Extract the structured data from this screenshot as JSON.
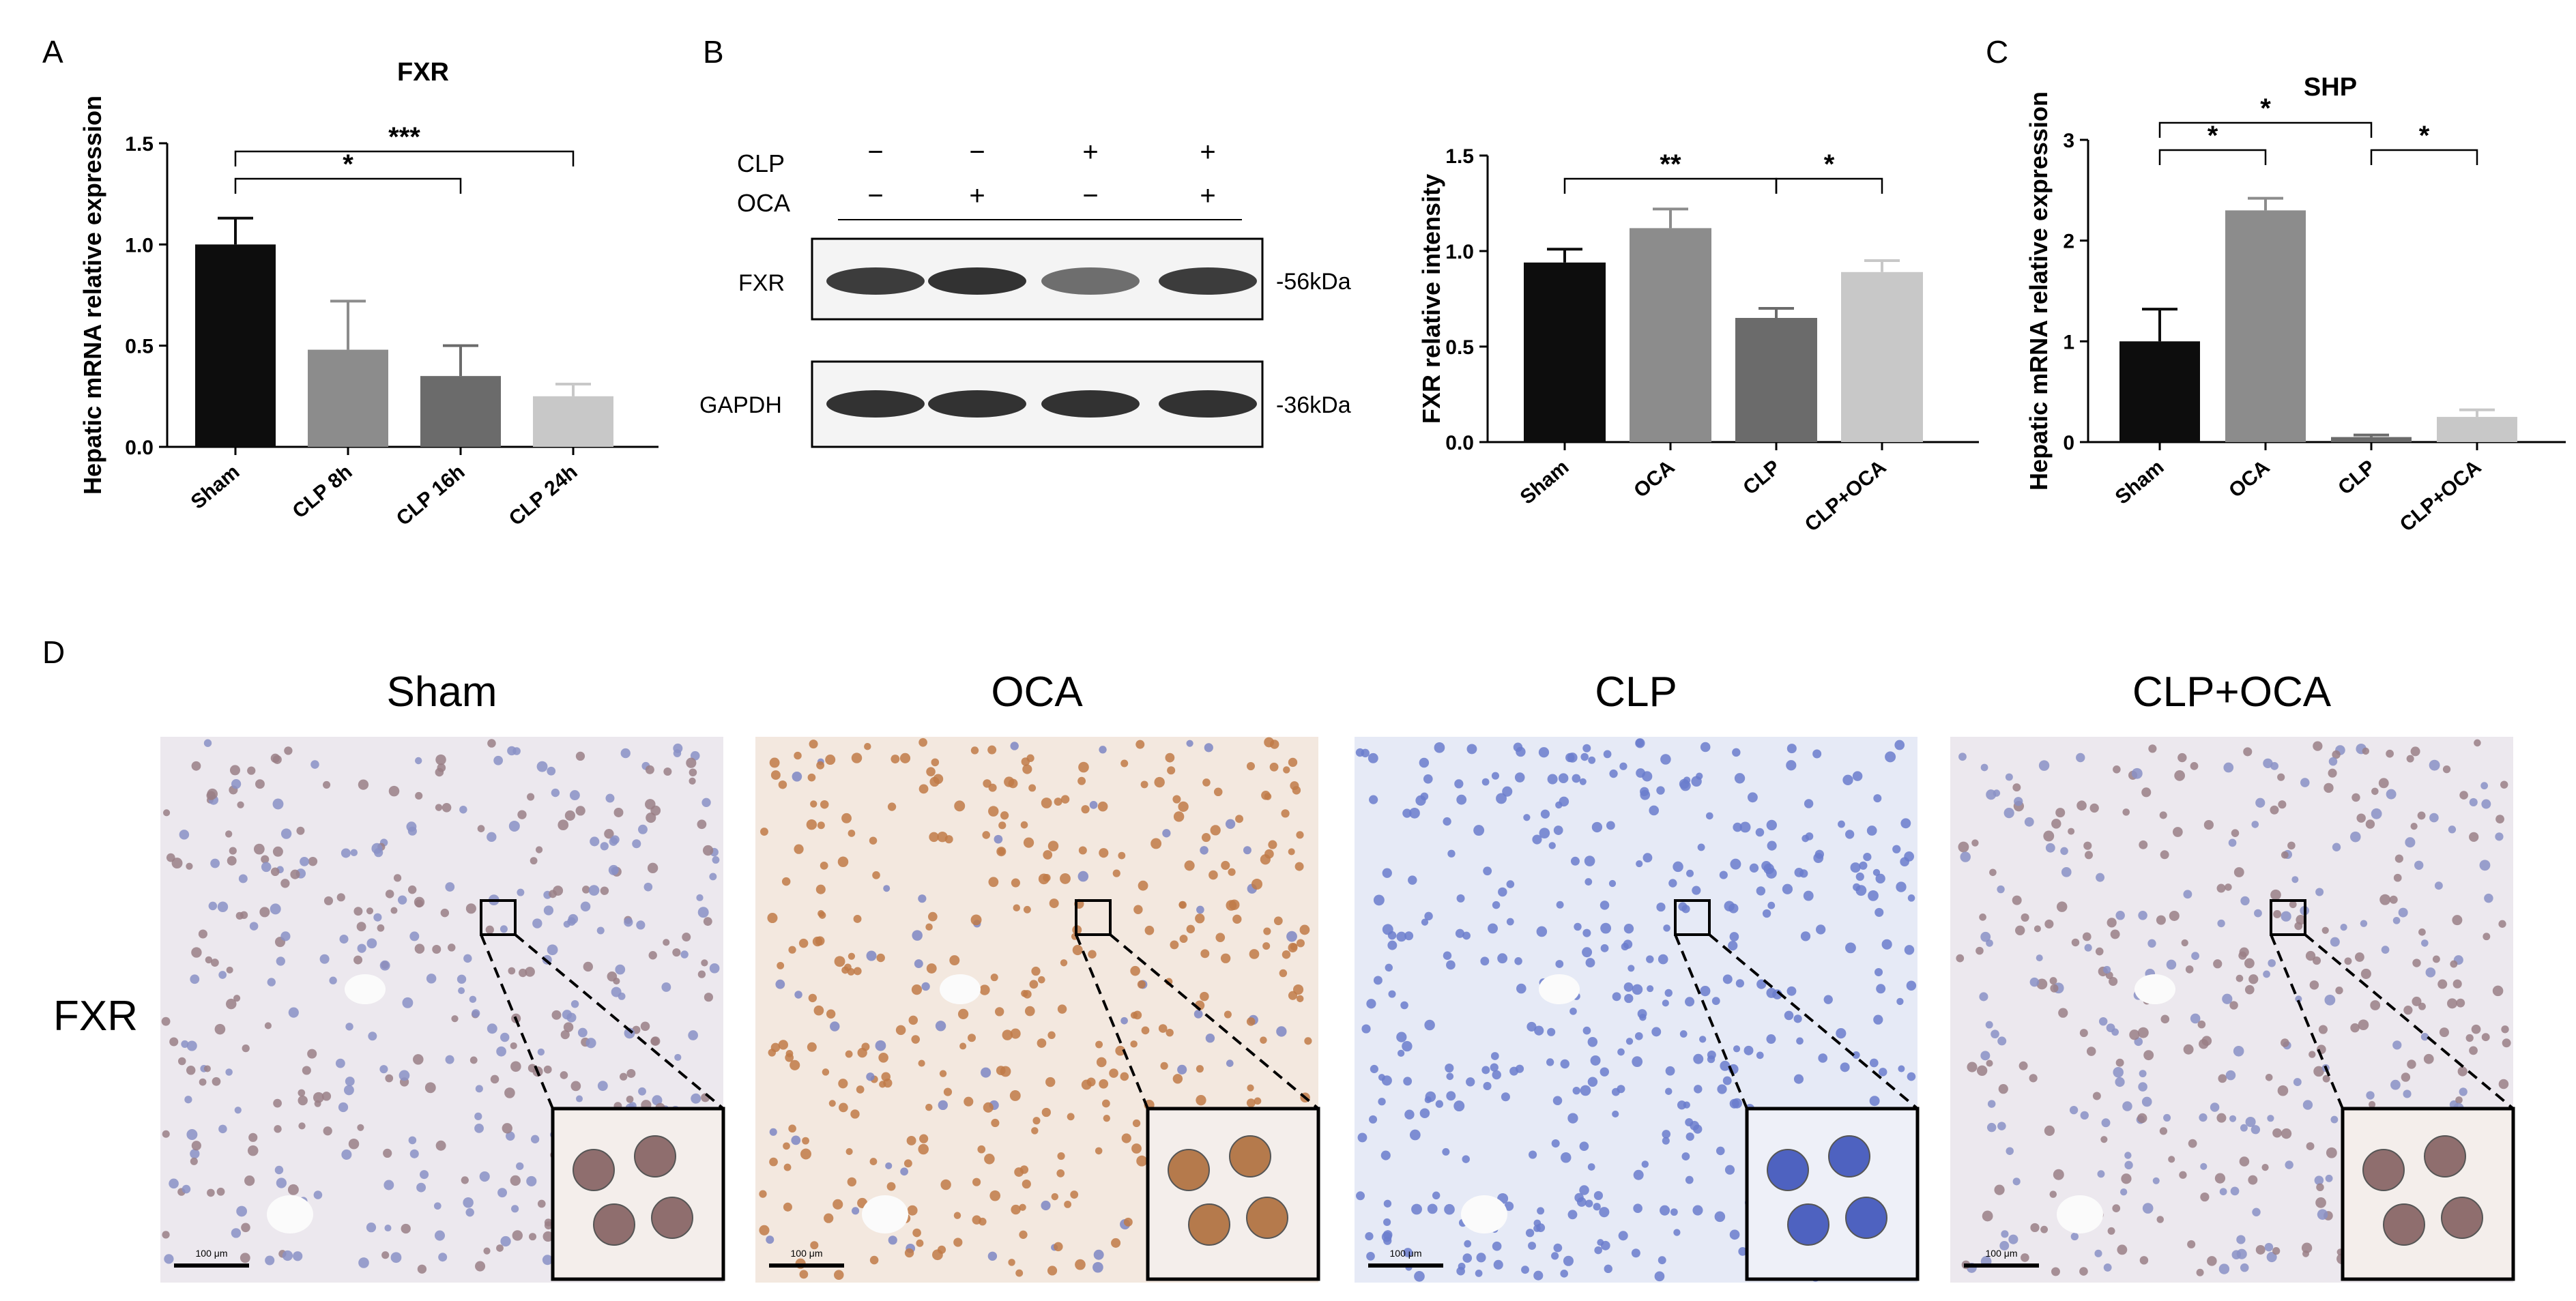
{
  "panel_letters": [
    "A",
    "B",
    "C",
    "D"
  ],
  "colors": {
    "black": "#0d0d0d",
    "dark_gray": "#6b6b6b",
    "gray": "#8c8c8c",
    "light_gray": "#c8c8c8",
    "axis": "#000000",
    "hema_blue": "#5a6fc4",
    "dab_brown": "#a0643c"
  },
  "western_blot": {
    "row_labels": [
      "CLP",
      "OCA"
    ],
    "signs": [
      [
        "−",
        "−",
        "+",
        "+"
      ],
      [
        "−",
        "+",
        "−",
        "+"
      ]
    ],
    "bands": [
      {
        "name": "FXR",
        "marker": "-56kDa",
        "intensity": [
          0.85,
          0.9,
          0.6,
          0.85
        ]
      },
      {
        "name": "GAPDH",
        "marker": "-36kDa",
        "intensity": [
          0.9,
          0.9,
          0.9,
          0.9
        ]
      }
    ]
  },
  "ihc": {
    "panels": [
      {
        "title": "Sham",
        "scale_text": "100 μm",
        "stain": "mixed"
      },
      {
        "title": "OCA",
        "scale_text": "100 μm",
        "stain": "brown"
      },
      {
        "title": "CLP",
        "scale_text": "100 μm",
        "stain": "blue"
      },
      {
        "title": "CLP+OCA",
        "scale_text": "100 μm",
        "stain": "mixed"
      }
    ],
    "row_label": "FXR"
  },
  "chart_data": [
    {
      "panel": "A",
      "type": "bar",
      "title": "FXR",
      "xlabel": "",
      "ylabel": "Hepatic mRNA relative expression",
      "categories": [
        "Sham",
        "CLP 8h",
        "CLP 16h",
        "CLP 24h"
      ],
      "values": [
        1.0,
        0.48,
        0.35,
        0.25
      ],
      "errors": [
        0.13,
        0.24,
        0.15,
        0.06
      ],
      "bar_colors": [
        "#0d0d0d",
        "#8c8c8c",
        "#6b6b6b",
        "#c8c8c8"
      ],
      "ylim": [
        0,
        1.5
      ],
      "yticks": [
        "0.0",
        "0.5",
        "1.0",
        "1.5"
      ],
      "significance": [
        {
          "from": 0,
          "to": 2,
          "label": "*"
        },
        {
          "from": 0,
          "to": 3,
          "label": "***"
        }
      ]
    },
    {
      "panel": "B",
      "type": "bar",
      "title": "",
      "xlabel": "",
      "ylabel": "FXR relative intensity",
      "categories": [
        "Sham",
        "OCA",
        "CLP",
        "CLP+OCA"
      ],
      "values": [
        0.94,
        1.12,
        0.65,
        0.89
      ],
      "errors": [
        0.07,
        0.1,
        0.05,
        0.06
      ],
      "bar_colors": [
        "#0d0d0d",
        "#8c8c8c",
        "#6b6b6b",
        "#c8c8c8"
      ],
      "ylim": [
        0,
        1.5
      ],
      "yticks": [
        "0.0",
        "0.5",
        "1.0",
        "1.5"
      ],
      "significance": [
        {
          "from": 0,
          "to": 2,
          "label": "**"
        },
        {
          "from": 2,
          "to": 3,
          "label": "*"
        }
      ]
    },
    {
      "panel": "C",
      "type": "bar",
      "title": "SHP",
      "xlabel": "",
      "ylabel": "Hepatic mRNA relative expression",
      "categories": [
        "Sham",
        "OCA",
        "CLP",
        "CLP+OCA"
      ],
      "values": [
        1.0,
        2.3,
        0.05,
        0.25
      ],
      "errors": [
        0.32,
        0.12,
        0.02,
        0.07
      ],
      "bar_colors": [
        "#0d0d0d",
        "#8c8c8c",
        "#6b6b6b",
        "#c8c8c8"
      ],
      "ylim": [
        0,
        3
      ],
      "yticks": [
        "0",
        "1",
        "2",
        "3"
      ],
      "significance": [
        {
          "from": 0,
          "to": 1,
          "label": "*"
        },
        {
          "from": 0,
          "to": 2,
          "label": "*"
        },
        {
          "from": 2,
          "to": 3,
          "label": "*"
        }
      ]
    }
  ]
}
